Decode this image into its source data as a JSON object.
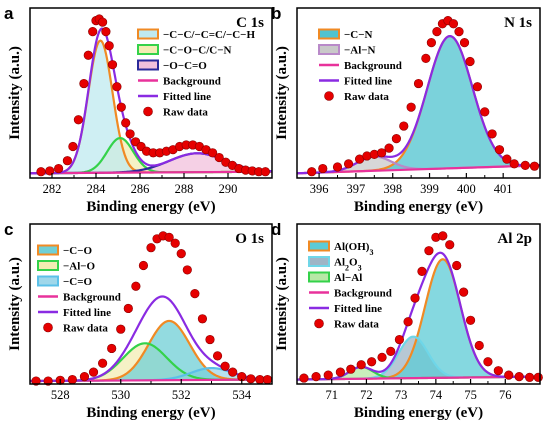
{
  "chart_data": [
    {
      "panel": "a",
      "type": "scatter",
      "title": "C 1s",
      "xlabel": "Binding energy (eV)",
      "ylabel": "Intensity (a.u.)",
      "xlim": [
        281,
        292
      ],
      "xticks": [
        282,
        284,
        286,
        288,
        290
      ],
      "series": [
        {
          "name": "−C−C/−C=C/−C−H",
          "kind": "peak",
          "color": "#f08a24",
          "fill": "#bfe9ef",
          "center": 284.2,
          "fwhm": 1.3,
          "height": 0.84
        },
        {
          "name": "−C−O−C/C−N",
          "kind": "peak",
          "color": "#34d24a",
          "fill": "#f3ecb3",
          "center": 285.1,
          "fwhm": 1.4,
          "height": 0.22
        },
        {
          "name": "−O−C=O",
          "kind": "peak",
          "color": "#2a2a9a",
          "fill": "#f2c0dc",
          "center": 288.6,
          "fwhm": 3.0,
          "height": 0.12
        },
        {
          "name": "Background",
          "kind": "background",
          "color": "#e8329b",
          "y0": 0.03,
          "y1": 0.04
        },
        {
          "name": "Fitted line",
          "kind": "fit",
          "color": "#8a2be2"
        },
        {
          "name": "Raw data",
          "kind": "raw",
          "color": "#e60000",
          "x": [
            281.5,
            281.9,
            282.3,
            282.7,
            282.95,
            283.2,
            283.45,
            283.65,
            283.85,
            284.0,
            284.15,
            284.3,
            284.45,
            284.6,
            284.75,
            284.95,
            285.15,
            285.35,
            285.55,
            285.8,
            286.05,
            286.3,
            286.6,
            286.9,
            287.2,
            287.5,
            287.8,
            288.1,
            288.4,
            288.7,
            289.0,
            289.3,
            289.6,
            289.9,
            290.2,
            290.5,
            290.8,
            291.1,
            291.4,
            291.7
          ],
          "y": [
            0.04,
            0.045,
            0.06,
            0.11,
            0.2,
            0.37,
            0.6,
            0.78,
            0.93,
            1.0,
            1.01,
            0.99,
            0.93,
            0.84,
            0.72,
            0.58,
            0.45,
            0.35,
            0.28,
            0.23,
            0.2,
            0.17,
            0.16,
            0.16,
            0.17,
            0.18,
            0.2,
            0.21,
            0.21,
            0.2,
            0.18,
            0.16,
            0.13,
            0.1,
            0.08,
            0.06,
            0.05,
            0.045,
            0.04,
            0.04
          ]
        }
      ]
    },
    {
      "panel": "b",
      "type": "scatter",
      "title": "N 1s",
      "xlabel": "Binding energy (eV)",
      "ylabel": "Intensity (a.u.)",
      "xlim": [
        395.4,
        402.0
      ],
      "xticks": [
        396,
        397,
        398,
        399,
        400,
        401
      ],
      "series": [
        {
          "name": "−C−N",
          "kind": "peak",
          "color": "#f08a24",
          "fill": "#4fc3cf",
          "center": 399.55,
          "fwhm": 1.45,
          "height": 0.84
        },
        {
          "name": "−Al−N",
          "kind": "peak",
          "color": "#b98ac9",
          "fill": "#c9c9c9",
          "center": 397.5,
          "fwhm": 1.1,
          "height": 0.09
        },
        {
          "name": "Background",
          "kind": "background",
          "color": "#e8329b",
          "y0": 0.03,
          "y1": 0.08
        },
        {
          "name": "Fitted line",
          "kind": "fit",
          "color": "#8a2be2"
        },
        {
          "name": "Raw data",
          "kind": "raw",
          "color": "#e60000",
          "x": [
            395.8,
            396.1,
            396.5,
            396.8,
            397.1,
            397.3,
            397.5,
            397.7,
            397.9,
            398.1,
            398.3,
            398.5,
            398.7,
            398.9,
            399.05,
            399.2,
            399.35,
            399.5,
            399.65,
            399.8,
            399.95,
            400.1,
            400.3,
            400.5,
            400.7,
            400.9,
            401.1,
            401.3,
            401.6,
            401.85
          ],
          "y": [
            0.04,
            0.06,
            0.07,
            0.09,
            0.12,
            0.14,
            0.15,
            0.16,
            0.19,
            0.25,
            0.33,
            0.45,
            0.6,
            0.76,
            0.86,
            0.93,
            0.98,
            1.0,
            0.98,
            0.93,
            0.86,
            0.74,
            0.58,
            0.42,
            0.28,
            0.18,
            0.12,
            0.09,
            0.08,
            0.075
          ]
        }
      ]
    },
    {
      "panel": "c",
      "type": "scatter",
      "title": "O 1s",
      "xlabel": "Binding energy (eV)",
      "ylabel": "Intensity (a.u.)",
      "xlim": [
        527.0,
        535.0
      ],
      "xticks": [
        528,
        530,
        532,
        534
      ],
      "series": [
        {
          "name": "−C−O",
          "kind": "peak",
          "color": "#f08a24",
          "fill": "#6fcfd6",
          "center": 531.6,
          "fwhm": 1.6,
          "height": 0.4
        },
        {
          "name": "−Al−O",
          "kind": "peak",
          "color": "#34d24a",
          "fill": "#f3ecb3",
          "center": 530.8,
          "fwhm": 1.7,
          "height": 0.25
        },
        {
          "name": "−C=O",
          "kind": "peak",
          "color": "#5bc0e8",
          "fill": "#9fd7ea",
          "center": 533.0,
          "fwhm": 1.6,
          "height": 0.08
        },
        {
          "name": "Background",
          "kind": "background",
          "color": "#e8329b",
          "y0": 0.02,
          "y1": 0.03
        },
        {
          "name": "Fitted line",
          "kind": "fit",
          "color": "#8a2be2"
        },
        {
          "name": "Raw data",
          "kind": "raw",
          "color": "#e60000",
          "x": [
            527.2,
            527.6,
            528.0,
            528.4,
            528.8,
            529.1,
            529.4,
            529.7,
            530.0,
            530.25,
            530.5,
            530.75,
            531.0,
            531.2,
            531.4,
            531.6,
            531.8,
            532.0,
            532.2,
            532.45,
            532.7,
            532.95,
            533.2,
            533.45,
            533.7,
            534.0,
            534.3,
            534.6,
            534.85
          ],
          "y": [
            0.02,
            0.02,
            0.025,
            0.03,
            0.05,
            0.08,
            0.14,
            0.24,
            0.37,
            0.51,
            0.66,
            0.8,
            0.92,
            0.98,
            1.0,
            0.99,
            0.95,
            0.88,
            0.77,
            0.61,
            0.44,
            0.3,
            0.19,
            0.12,
            0.08,
            0.05,
            0.035,
            0.03,
            0.03
          ]
        }
      ]
    },
    {
      "panel": "d",
      "type": "scatter",
      "title": "Al 2p",
      "xlabel": "Binding energy (eV)",
      "ylabel": "Intensity (a.u.)",
      "xlim": [
        70.0,
        77.0
      ],
      "xticks": [
        71,
        72,
        73,
        74,
        75,
        76
      ],
      "series": [
        {
          "name": "Al(OH)3",
          "kind": "peak",
          "color": "#f08a24",
          "fill": "#5ccbd6",
          "center": 74.2,
          "fwhm": 1.2,
          "height": 0.8
        },
        {
          "name": "Al2O3",
          "kind": "peak",
          "color": "#6fd6e8",
          "fill": "#9fb5c6",
          "center": 73.35,
          "fwhm": 1.0,
          "height": 0.28
        },
        {
          "name": "Al−Al",
          "kind": "peak",
          "color": "#34d24a",
          "fill": "#b7e8a6",
          "center": 71.85,
          "fwhm": 0.8,
          "height": 0.08
        },
        {
          "name": "Background",
          "kind": "background",
          "color": "#e8329b",
          "y0": 0.03,
          "y1": 0.05
        },
        {
          "name": "Fitted line",
          "kind": "fit",
          "color": "#8a2be2"
        },
        {
          "name": "Raw data",
          "kind": "raw",
          "color": "#e60000",
          "x": [
            70.2,
            70.55,
            70.9,
            71.25,
            71.55,
            71.85,
            72.15,
            72.45,
            72.7,
            72.95,
            73.2,
            73.4,
            73.6,
            73.8,
            74.0,
            74.2,
            74.4,
            74.6,
            74.8,
            75.0,
            75.25,
            75.5,
            75.8,
            76.1,
            76.4,
            76.7,
            76.95
          ],
          "y": [
            0.04,
            0.05,
            0.06,
            0.08,
            0.1,
            0.13,
            0.15,
            0.18,
            0.22,
            0.3,
            0.42,
            0.58,
            0.76,
            0.9,
            0.99,
            1.0,
            0.94,
            0.8,
            0.62,
            0.43,
            0.26,
            0.15,
            0.09,
            0.06,
            0.05,
            0.045,
            0.045
          ]
        }
      ]
    }
  ]
}
